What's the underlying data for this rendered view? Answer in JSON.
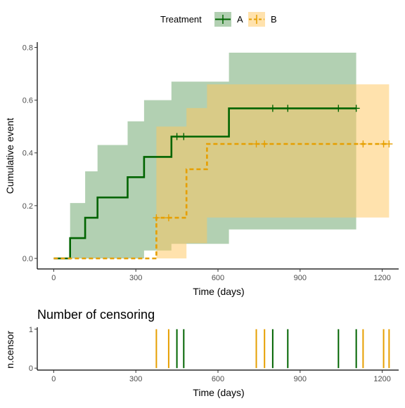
{
  "chart_data": [
    {
      "type": "line",
      "subtype": "step-cumulative-incidence",
      "xlabel": "Time (days)",
      "ylabel": "Cumulative event",
      "xlim": [
        -60,
        1260
      ],
      "ylim": [
        -0.04,
        0.82
      ],
      "xticks": [
        0,
        300,
        600,
        900,
        1200
      ],
      "yticks": [
        0.0,
        0.2,
        0.4,
        0.6,
        0.8
      ],
      "grid": false,
      "legend": {
        "title": "Treatment",
        "placement": "top",
        "entries": [
          "A",
          "B"
        ]
      },
      "series": [
        {
          "name": "A",
          "color": "#006400",
          "line_style": "solid",
          "x": [
            0,
            60,
            115,
            160,
            270,
            330,
            430,
            640,
            1105
          ],
          "y": [
            0.0,
            0.077,
            0.154,
            0.231,
            0.308,
            0.385,
            0.462,
            0.569,
            0.569
          ],
          "ci_lower": [
            0.0,
            0.0,
            0.0,
            0.0,
            0.0,
            0.03,
            0.055,
            0.11,
            0.11
          ],
          "ci_upper": [
            0.0,
            0.21,
            0.33,
            0.43,
            0.52,
            0.6,
            0.67,
            0.78,
            0.78
          ],
          "censor_x": [
            450,
            475,
            800,
            855,
            1040,
            1105
          ]
        },
        {
          "name": "B",
          "color": "#E69F00",
          "line_style": "dashed",
          "x": [
            0,
            350,
            375,
            470,
            485,
            560,
            1225
          ],
          "y": [
            0.0,
            0.0,
            0.154,
            0.154,
            0.338,
            0.434,
            0.434
          ],
          "ci_lower": [
            0.0,
            0.0,
            0.0,
            0.0,
            0.058,
            0.155,
            0.155
          ],
          "ci_upper": [
            0.0,
            0.0,
            0.5,
            0.5,
            0.57,
            0.66,
            0.66
          ],
          "censor_x": [
            375,
            420,
            740,
            770,
            1130,
            1205,
            1225
          ]
        }
      ]
    },
    {
      "type": "bar",
      "subtype": "censoring-ticks",
      "title": "Number of censoring",
      "xlabel": "Time (days)",
      "ylabel": "n.censor",
      "xlim": [
        -60,
        1260
      ],
      "ylim": [
        -0.05,
        1.05
      ],
      "xticks": [
        0,
        300,
        600,
        900,
        1200
      ],
      "yticks": [
        0,
        1
      ],
      "series": [
        {
          "name": "A",
          "color": "#006400",
          "x": [
            450,
            475,
            800,
            855,
            1040,
            1105
          ],
          "values": [
            1,
            1,
            1,
            1,
            1,
            1
          ]
        },
        {
          "name": "B",
          "color": "#E69F00",
          "x": [
            375,
            420,
            740,
            770,
            1130,
            1205,
            1225
          ],
          "values": [
            1,
            1,
            1,
            1,
            1,
            1,
            1
          ]
        }
      ]
    }
  ]
}
